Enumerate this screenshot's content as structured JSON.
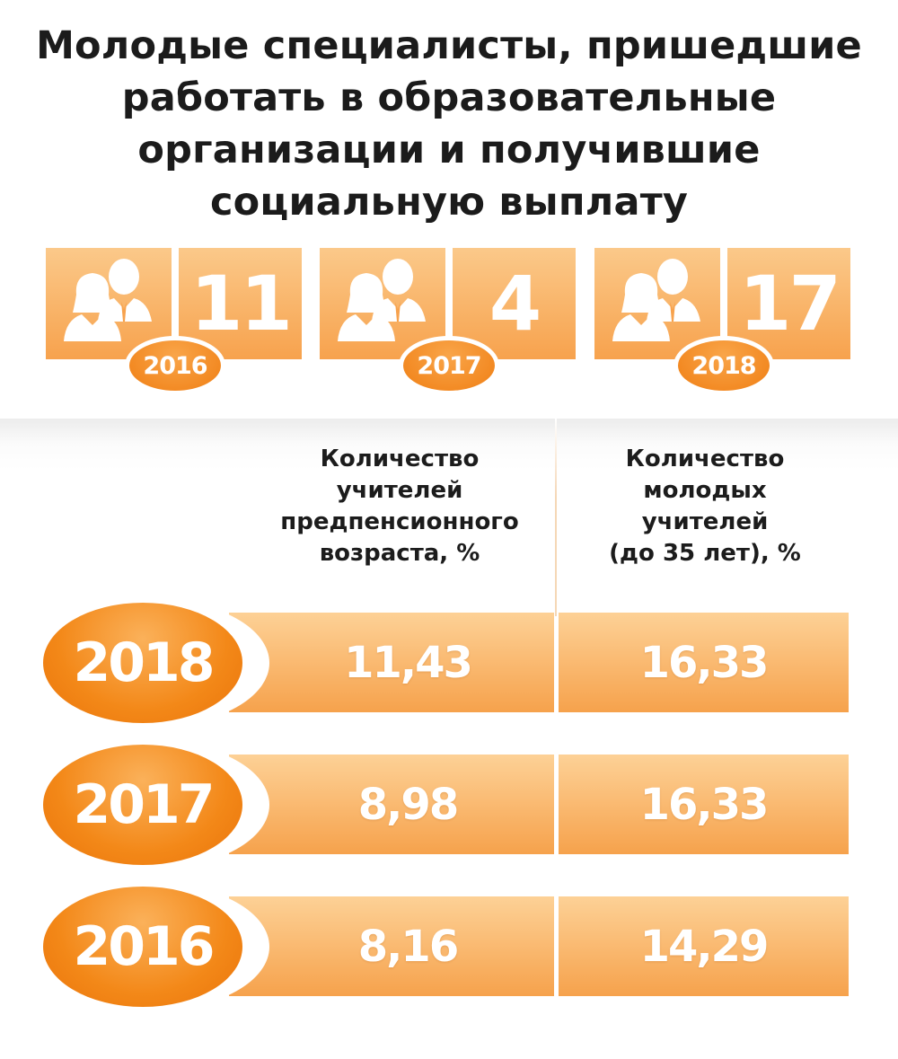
{
  "title": {
    "line1": "Молодые специалисты, пришедшие",
    "line2": "работать в образовательные",
    "line3": "организации и получившие",
    "line4": "социальную выплату"
  },
  "specialists": [
    {
      "year": "2016",
      "count": "11",
      "icon": "people-icon"
    },
    {
      "year": "2017",
      "count": "4",
      "icon": "people-icon"
    },
    {
      "year": "2018",
      "count": "17",
      "icon": "people-icon"
    }
  ],
  "table": {
    "col1_header": [
      "Количество",
      "учителей",
      "предпенсионного",
      "возраста, %"
    ],
    "col2_header": [
      "Количество",
      "молодых",
      "учителей",
      "(до 35 лет), %"
    ],
    "rows": [
      {
        "year": "2018",
        "pre_pension": "11,43",
        "young": "16,33"
      },
      {
        "year": "2017",
        "pre_pension": "8,98",
        "young": "16,33"
      },
      {
        "year": "2016",
        "pre_pension": "8,16",
        "young": "14,29"
      }
    ]
  },
  "colors": {
    "accent_orange": "#f38818",
    "light_orange": "#fdd196",
    "text_dark": "#1c1c1c"
  },
  "chart_data": {
    "type": "table",
    "title": "Молодые специалисты, пришедшие работать в образовательные организации и получившие социальную выплату",
    "categories": [
      "2016",
      "2017",
      "2018"
    ],
    "series": [
      {
        "name": "Молодые специалисты, пришедшие работать в образовательные организации и получившие социальную выплату",
        "values": [
          11,
          4,
          17
        ]
      },
      {
        "name": "Количество учителей предпенсионного возраста, %",
        "values": [
          8.16,
          8.98,
          11.43
        ]
      },
      {
        "name": "Количество молодых учителей (до 35 лет), %",
        "values": [
          14.29,
          16.33,
          16.33
        ]
      }
    ]
  }
}
